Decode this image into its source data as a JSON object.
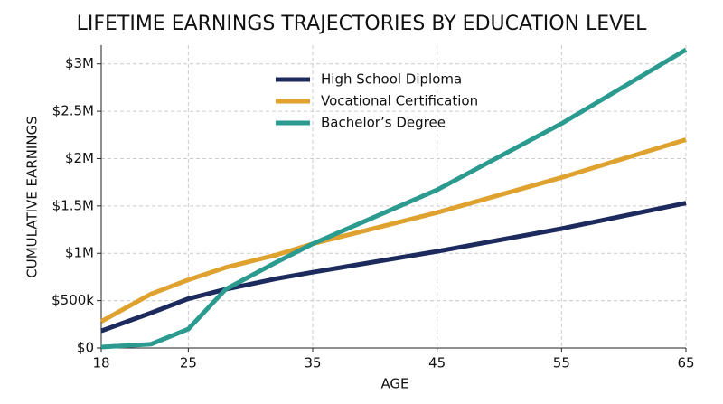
{
  "chart_data": {
    "type": "line",
    "title": "LIFETIME EARNINGS TRAJECTORIES BY EDUCATION LEVEL",
    "x_label": "AGE",
    "y_label": "CUMULATIVE EARNINGS",
    "x": [
      18,
      22,
      25,
      28,
      32,
      35,
      45,
      55,
      65
    ],
    "series": [
      {
        "name": "High School Diploma",
        "color": "#1c2a5e",
        "values": [
          180000,
          370000,
          520000,
          620000,
          730000,
          800000,
          1020000,
          1260000,
          1530000
        ]
      },
      {
        "name": "Vocational Certification",
        "color": "#e0a22e",
        "values": [
          280000,
          570000,
          720000,
          850000,
          980000,
          1100000,
          1430000,
          1800000,
          2200000
        ]
      },
      {
        "name": "Bachelor’s Degree",
        "color": "#2b9a8f",
        "values": [
          10000,
          40000,
          200000,
          620000,
          900000,
          1100000,
          1670000,
          2370000,
          3150000
        ]
      }
    ],
    "xlim": [
      18,
      65
    ],
    "xticks": [
      18,
      25,
      35,
      45,
      55,
      65
    ],
    "ylim": [
      0,
      3150000
    ],
    "yticks": [
      {
        "value": 0,
        "label": "$0"
      },
      {
        "value": 500000,
        "label": "$500k"
      },
      {
        "value": 1000000,
        "label": "$1M"
      },
      {
        "value": 1500000,
        "label": "$1.5M"
      },
      {
        "value": 2000000,
        "label": "$2M"
      },
      {
        "value": 2500000,
        "label": "$2.5M"
      },
      {
        "value": 3000000,
        "label": "$3M"
      }
    ],
    "grid": true,
    "legend": "upper-left"
  }
}
